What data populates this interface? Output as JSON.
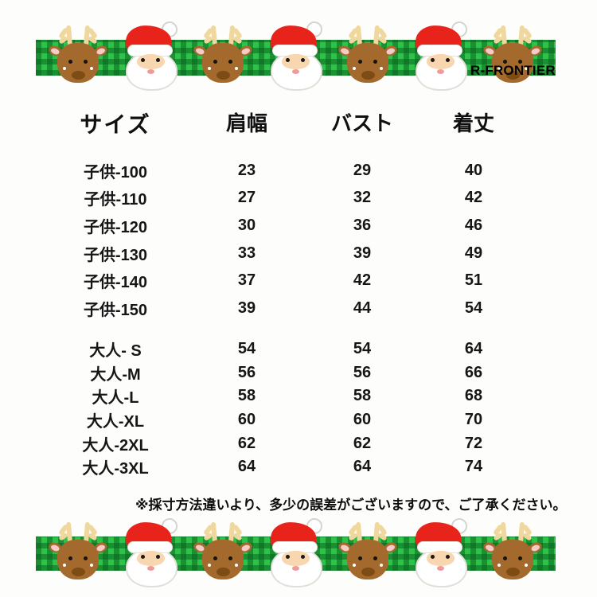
{
  "brand": "R-FRONTIER",
  "table": {
    "headers": {
      "size": "サイズ",
      "shoulder": "肩幅",
      "bust": "バスト",
      "length": "着丈"
    },
    "rows": [
      {
        "group": "child",
        "size": "子供-100",
        "shoulder": "23",
        "bust": "29",
        "length": "40"
      },
      {
        "group": "child",
        "size": "子供-110",
        "shoulder": "27",
        "bust": "32",
        "length": "42"
      },
      {
        "group": "child",
        "size": "子供-120",
        "shoulder": "30",
        "bust": "36",
        "length": "46"
      },
      {
        "group": "child",
        "size": "子供-130",
        "shoulder": "33",
        "bust": "39",
        "length": "49"
      },
      {
        "group": "child",
        "size": "子供-140",
        "shoulder": "37",
        "bust": "42",
        "length": "51"
      },
      {
        "group": "child",
        "size": "子供-150",
        "shoulder": "39",
        "bust": "44",
        "length": "54"
      },
      {
        "group": "adult",
        "size": "大人- S",
        "shoulder": "54",
        "bust": "54",
        "length": "64"
      },
      {
        "group": "adult",
        "size": "大人-M",
        "shoulder": "56",
        "bust": "56",
        "length": "66"
      },
      {
        "group": "adult",
        "size": "大人-L",
        "shoulder": "58",
        "bust": "58",
        "length": "68"
      },
      {
        "group": "adult",
        "size": "大人-XL",
        "shoulder": "60",
        "bust": "60",
        "length": "70"
      },
      {
        "group": "adult",
        "size": "大人-2XL",
        "shoulder": "62",
        "bust": "62",
        "length": "72"
      },
      {
        "group": "adult",
        "size": "大人-3XL",
        "shoulder": "64",
        "bust": "64",
        "length": "74"
      }
    ]
  },
  "footnote": "※採寸方法違いより、多少の誤差がございますので、ご了承ください。",
  "border": {
    "pattern": [
      "reindeer-icon",
      "santa-icon",
      "reindeer-icon",
      "santa-icon",
      "reindeer-icon",
      "santa-icon",
      "reindeer-icon"
    ],
    "colors": {
      "plaid_green": "#2ec24b",
      "plaid_dark_green": "#0c6e23",
      "santa_red": "#e8231b",
      "reindeer_brown": "#a46a2d",
      "antler_tan": "#efd79e",
      "ear_pink": "#f6c9cb",
      "nose_brown": "#7d4c15"
    }
  }
}
